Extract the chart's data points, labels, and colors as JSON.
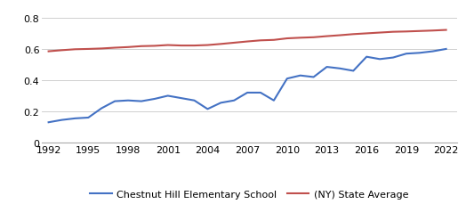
{
  "school_years": [
    1992,
    1993,
    1994,
    1995,
    1996,
    1997,
    1998,
    1999,
    2000,
    2001,
    2002,
    2003,
    2004,
    2005,
    2006,
    2007,
    2008,
    2009,
    2010,
    2011,
    2012,
    2013,
    2014,
    2015,
    2016,
    2017,
    2018,
    2019,
    2020,
    2021,
    2022
  ],
  "school_values": [
    0.13,
    0.145,
    0.155,
    0.16,
    0.22,
    0.265,
    0.27,
    0.265,
    0.28,
    0.3,
    0.285,
    0.27,
    0.215,
    0.255,
    0.27,
    0.32,
    0.32,
    0.27,
    0.41,
    0.43,
    0.42,
    0.485,
    0.475,
    0.46,
    0.55,
    0.535,
    0.545,
    0.57,
    0.575,
    0.585,
    0.6
  ],
  "state_years": [
    1992,
    1993,
    1994,
    1995,
    1996,
    1997,
    1998,
    1999,
    2000,
    2001,
    2002,
    2003,
    2004,
    2005,
    2006,
    2007,
    2008,
    2009,
    2010,
    2011,
    2012,
    2013,
    2014,
    2015,
    2016,
    2017,
    2018,
    2019,
    2020,
    2021,
    2022
  ],
  "state_values": [
    0.585,
    0.592,
    0.598,
    0.6,
    0.603,
    0.608,
    0.612,
    0.618,
    0.62,
    0.625,
    0.622,
    0.622,
    0.625,
    0.632,
    0.64,
    0.648,
    0.655,
    0.658,
    0.668,
    0.672,
    0.675,
    0.682,
    0.688,
    0.695,
    0.7,
    0.705,
    0.71,
    0.712,
    0.715,
    0.718,
    0.722
  ],
  "school_color": "#4472c4",
  "state_color": "#c0504d",
  "school_label": "Chestnut Hill Elementary School",
  "state_label": "(NY) State Average",
  "ylim": [
    0,
    0.88
  ],
  "yticks": [
    0,
    0.2,
    0.4,
    0.6,
    0.8
  ],
  "xticks": [
    1992,
    1995,
    1998,
    2001,
    2004,
    2007,
    2010,
    2013,
    2016,
    2019,
    2022
  ],
  "background_color": "#ffffff",
  "grid_color": "#d0d0d0",
  "line_width": 1.5,
  "legend_fontsize": 8,
  "tick_fontsize": 8
}
